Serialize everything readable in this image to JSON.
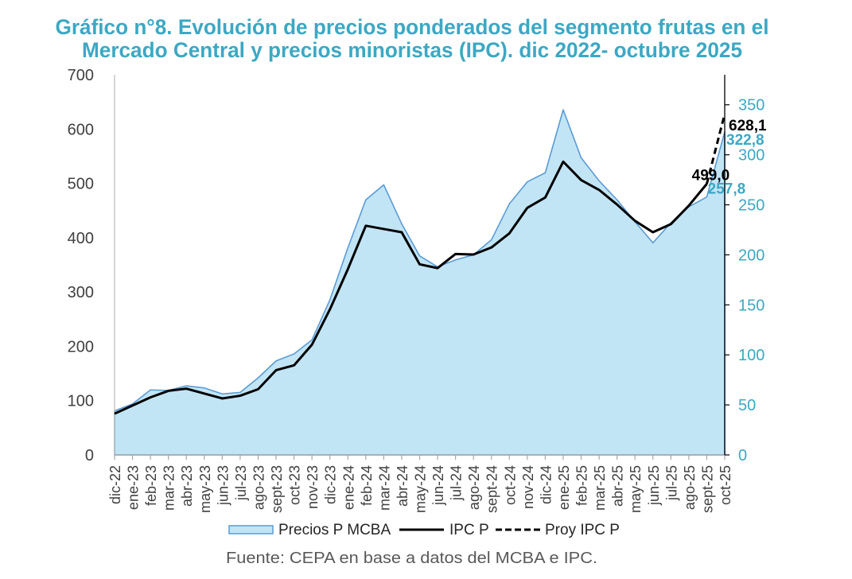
{
  "chart_data": {
    "type": "area",
    "title": "Gráfico n°8. Evolución de precios ponderados del segmento frutas en el Mercado Central y precios minoristas (IPC). dic 2022- octubre 2025",
    "title_lines": [
      "Gráfico n°8. Evolución de precios ponderados del segmento frutas en el",
      "Mercado Central y precios minoristas (IPC). dic 2022- octubre 2025"
    ],
    "xlabel": "",
    "ylabel": "",
    "y2label": "",
    "categories": [
      "dic-22",
      "ene-23",
      "feb-23",
      "mar-23",
      "abr-23",
      "may-23",
      "jun-23",
      "jul-23",
      "ago-23",
      "sept-23",
      "oct-23",
      "nov-23",
      "dic-23",
      "ene-24",
      "feb-24",
      "mar-24",
      "abr-24",
      "may-24",
      "jun-24",
      "jul-24",
      "ago-24",
      "sept-24",
      "oct-24",
      "nov-24",
      "dic-24",
      "ene-25",
      "feb-25",
      "mar-25",
      "abr-25",
      "may-25",
      "jun-25",
      "jul-25",
      "ago-25",
      "sept-25",
      "oct-25"
    ],
    "ylim": [
      0,
      700
    ],
    "yticks": [
      0,
      100,
      200,
      300,
      400,
      500,
      600,
      700
    ],
    "y2lim": [
      0,
      380
    ],
    "y2ticks": [
      0,
      50,
      100,
      150,
      200,
      250,
      300,
      350
    ],
    "grid": false,
    "legend": {
      "position": "bottom"
    },
    "series": [
      {
        "name": "Precios P MCBA",
        "type": "area",
        "axis": "right",
        "values": [
          44,
          51,
          65,
          64.5,
          69,
          67,
          61,
          62.5,
          77,
          94,
          101,
          115,
          155,
          207,
          255,
          270,
          231,
          199,
          188,
          195,
          200,
          215,
          251,
          273,
          282,
          345,
          297,
          274,
          255,
          233,
          212,
          232,
          248,
          257.8,
          322.8
        ]
      },
      {
        "name": "IPC P",
        "type": "line",
        "axis": "left",
        "values": [
          76,
          91,
          106,
          118,
          122,
          113,
          104,
          109,
          121,
          156,
          165,
          203,
          268,
          342,
          422,
          416,
          410,
          351,
          344,
          370,
          369,
          382,
          408,
          455,
          474,
          540,
          506,
          488,
          461,
          431,
          410,
          425,
          459,
          499.0,
          null
        ]
      },
      {
        "name": "Proy IPC P",
        "type": "line-dashed",
        "axis": "left",
        "values": [
          null,
          null,
          null,
          null,
          null,
          null,
          null,
          null,
          null,
          null,
          null,
          null,
          null,
          null,
          null,
          null,
          null,
          null,
          null,
          null,
          null,
          null,
          null,
          null,
          null,
          null,
          null,
          null,
          null,
          null,
          null,
          null,
          null,
          499.0,
          628.1
        ]
      }
    ],
    "annotations": [
      {
        "text": "499,0",
        "series": "IPC P",
        "category": "sept-25",
        "value": 499.0
      },
      {
        "text": "257,8",
        "series": "Precios P MCBA",
        "category": "sept-25",
        "value": 257.8
      },
      {
        "text": "628,1",
        "series": "Proy IPC P",
        "category": "oct-25",
        "value": 628.1
      },
      {
        "text": "322,8",
        "series": "Precios P MCBA",
        "category": "oct-25",
        "value": 322.8
      }
    ],
    "source": "Fuente: CEPA en base a datos del MCBA e IPC."
  },
  "colors": {
    "title": "#3ca8c3",
    "right_axis_labels": "#3ca8c3",
    "area_fill": "#c2e5f5",
    "area_line": "#5b9bd5",
    "ipc_line": "#000000",
    "ipc_label": "#000000",
    "mcba_label": "#3ca8c3",
    "left_axis": "#bfbfbf",
    "x_axis": "#a6a6a6",
    "right_axis": "#000000"
  }
}
